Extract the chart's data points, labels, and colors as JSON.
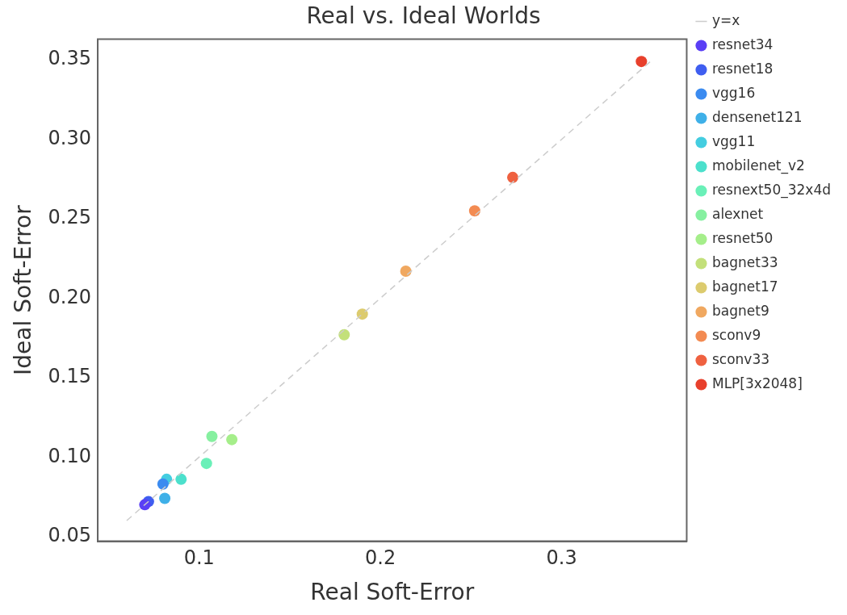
{
  "chart_data": {
    "type": "scatter",
    "title": "Real vs. Ideal Worlds",
    "xlabel": "Real Soft-Error",
    "ylabel": "Ideal Soft-Error",
    "xlim": [
      0.044,
      0.369
    ],
    "xticks": [
      {
        "value": 0.1,
        "label": "0.1"
      },
      {
        "value": 0.2,
        "label": "0.2"
      },
      {
        "value": 0.3,
        "label": "0.3"
      }
    ],
    "ylim": [
      0.047,
      0.363
    ],
    "yticks": [
      {
        "value": 0.05,
        "label": "0.05"
      },
      {
        "value": 0.1,
        "label": "0.10"
      },
      {
        "value": 0.15,
        "label": "0.15"
      },
      {
        "value": 0.2,
        "label": "0.20"
      },
      {
        "value": 0.25,
        "label": "0.25"
      },
      {
        "value": 0.3,
        "label": "0.30"
      },
      {
        "value": 0.35,
        "label": "0.35"
      }
    ],
    "grid": false,
    "legend": "right",
    "marker": "circle",
    "series": [
      {
        "name": "y=x",
        "type": "line",
        "line_style": "dashed",
        "marker": "none",
        "color": "#cccccc",
        "x": [
          0.06,
          0.35
        ],
        "values": [
          0.06,
          0.35
        ]
      },
      {
        "name": "resnet34",
        "color": "#5a3ff5",
        "x": [
          0.07
        ],
        "values": [
          0.07
        ]
      },
      {
        "name": "resnet18",
        "color": "#3f5ef0",
        "x": [
          0.072
        ],
        "values": [
          0.072
        ]
      },
      {
        "name": "vgg16",
        "color": "#3b8bf0",
        "x": [
          0.08
        ],
        "values": [
          0.083
        ]
      },
      {
        "name": "densenet121",
        "color": "#3fb0e8",
        "x": [
          0.081
        ],
        "values": [
          0.074
        ]
      },
      {
        "name": "vgg11",
        "color": "#44cde0",
        "x": [
          0.082
        ],
        "values": [
          0.086
        ]
      },
      {
        "name": "mobilenet_v2",
        "color": "#4ce0cc",
        "x": [
          0.09
        ],
        "values": [
          0.086
        ]
      },
      {
        "name": "resnext50_32x4d",
        "color": "#6af0b8",
        "x": [
          0.104
        ],
        "values": [
          0.096
        ]
      },
      {
        "name": "alexnet",
        "color": "#86f0a0",
        "x": [
          0.107
        ],
        "values": [
          0.113
        ]
      },
      {
        "name": "resnet50",
        "color": "#a5ee8a",
        "x": [
          0.118
        ],
        "values": [
          0.111
        ]
      },
      {
        "name": "bagnet33",
        "color": "#c3e07a",
        "x": [
          0.18
        ],
        "values": [
          0.177
        ]
      },
      {
        "name": "bagnet17",
        "color": "#dccb6e",
        "x": [
          0.19
        ],
        "values": [
          0.19
        ]
      },
      {
        "name": "bagnet9",
        "color": "#f0a860",
        "x": [
          0.214
        ],
        "values": [
          0.217
        ]
      },
      {
        "name": "sconv9",
        "color": "#f38b52",
        "x": [
          0.252
        ],
        "values": [
          0.255
        ]
      },
      {
        "name": "sconv33",
        "color": "#ef6140",
        "x": [
          0.273
        ],
        "values": [
          0.276
        ]
      },
      {
        "name": "MLP[3x2048]",
        "color": "#e8402c",
        "x": [
          0.344
        ],
        "values": [
          0.349
        ]
      }
    ]
  }
}
